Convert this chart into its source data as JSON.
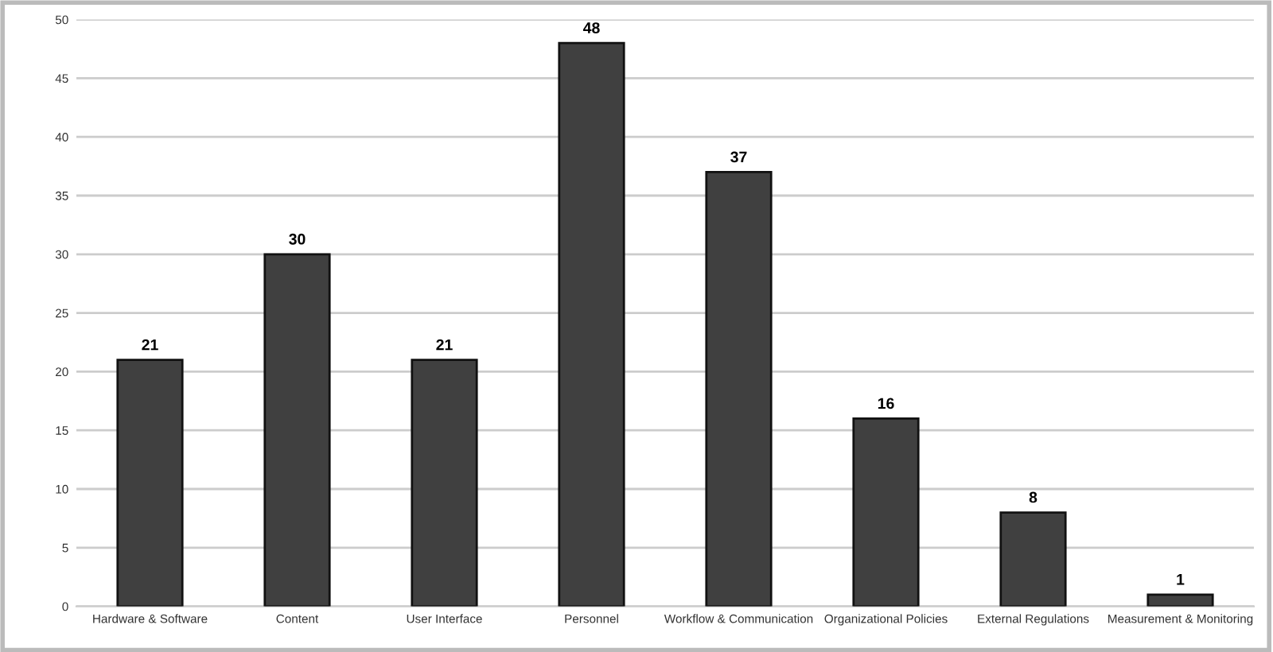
{
  "chart_data": {
    "type": "bar",
    "categories": [
      "Hardware & Software",
      "Content",
      "User Interface",
      "Personnel",
      "Workflow & Communication",
      "Organizational Policies",
      "External Regulations",
      "Measurement & Monitoring"
    ],
    "values": [
      21,
      30,
      21,
      48,
      37,
      16,
      8,
      1
    ],
    "color": "#404040",
    "ylim": [
      0,
      50
    ],
    "yticks": [
      0,
      5,
      10,
      15,
      20,
      25,
      30,
      35,
      40,
      45,
      50
    ],
    "grid": "y",
    "data_labels": true
  }
}
